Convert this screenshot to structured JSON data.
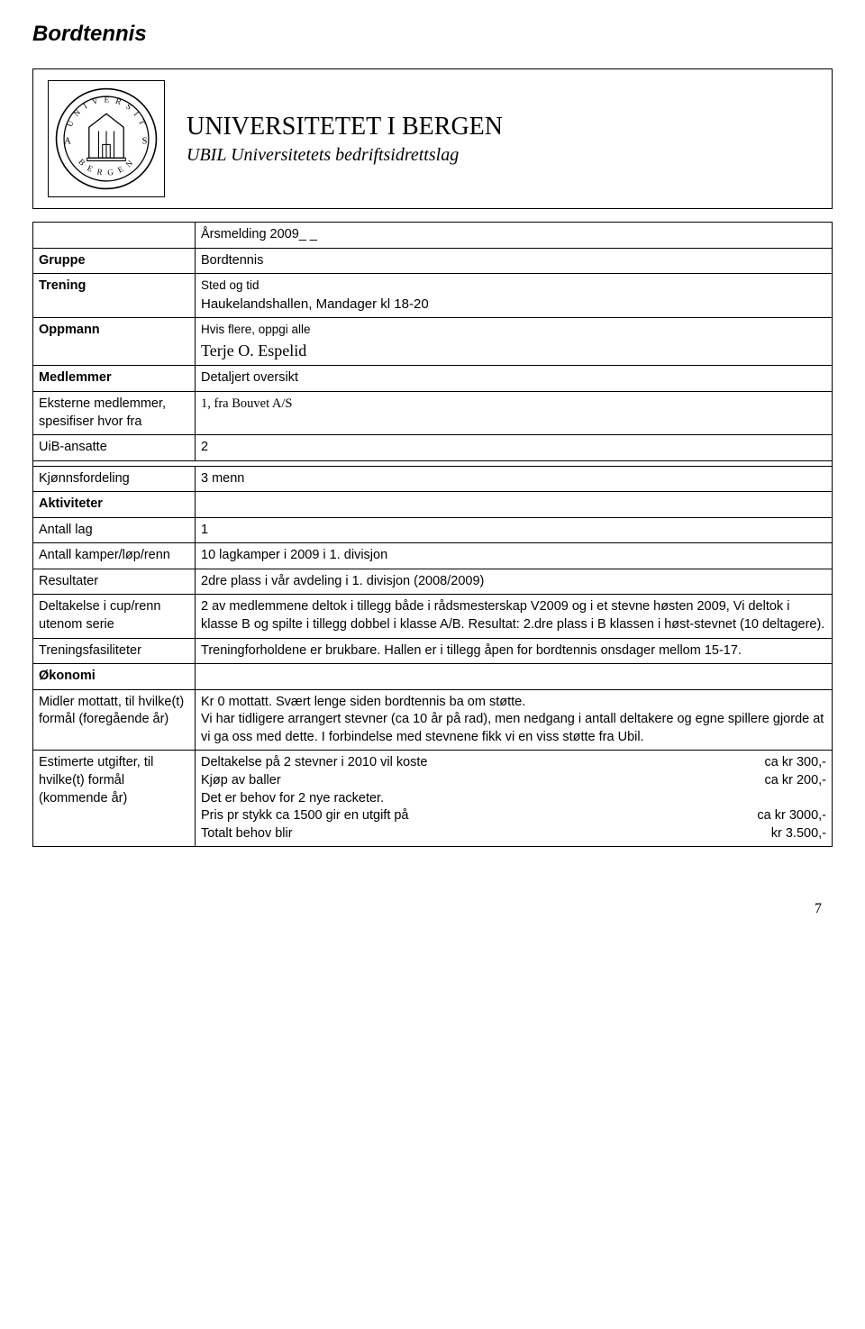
{
  "page_title": "Bordtennis",
  "header": {
    "university": "UNIVERSITETET I BERGEN",
    "subtitle": "UBIL Universitetets bedriftsidrettslag"
  },
  "table_title": "Årsmelding 2009_ _",
  "rows": {
    "gruppe": {
      "label": "Gruppe",
      "value": "Bordtennis"
    },
    "trening": {
      "label": "Trening",
      "sub": "Sted og tid",
      "value": "Haukelandshallen, Mandager kl 18-20"
    },
    "oppmann": {
      "label": "Oppmann",
      "sub": "Hvis flere, oppgi alle",
      "value": "Terje O. Espelid"
    },
    "medlemmer": {
      "label": "Medlemmer",
      "sub": "Detaljert oversikt"
    },
    "eksterne": {
      "label": "Eksterne medlemmer, spesifiser hvor fra",
      "value": "1, fra Bouvet A/S"
    },
    "uib": {
      "label": "UiB-ansatte",
      "value": "2"
    },
    "kjonn": {
      "label": "Kjønnsfordeling",
      "value": "3 menn"
    },
    "aktiviteter": {
      "label": "Aktiviteter"
    },
    "antall_lag": {
      "label": "Antall lag",
      "value": "1"
    },
    "antall_kamper": {
      "label": "Antall kamper/løp/renn",
      "value": "10 lagkamper i 2009 i 1. divisjon"
    },
    "resultater": {
      "label": "Resultater",
      "value": "2dre plass i vår avdeling i 1. divisjon (2008/2009)"
    },
    "deltakelse": {
      "label": "Deltakelse i cup/renn utenom serie",
      "value": "2 av medlemmene deltok i tillegg både i rådsmesterskap  V2009 og i et stevne høsten 2009, Vi deltok i klasse B og spilte i tillegg dobbel i klasse A/B. Resultat: 2.dre plass i B klassen i høst-stevnet (10 deltagere)."
    },
    "trenings": {
      "label": "Treningsfasiliteter",
      "value": "Treningforholdene er brukbare. Hallen er i tillegg åpen for bordtennis onsdager mellom 15-17."
    },
    "okonomi": {
      "label": "Økonomi"
    },
    "midler": {
      "label": "Midler mottatt, til hvilke(t) formål (foregående år)",
      "value": "Kr 0 mottatt. Svært lenge siden bordtennis ba om støtte.\nVi har tidligere arrangert stevner (ca 10 år på rad), men nedgang i antall deltakere og egne spillere gjorde at vi ga oss med dette. I forbindelse med stevnene fikk vi en viss støtte fra Ubil."
    },
    "estimerte": {
      "label": "Estimerte utgifter, til hvilke(t) formål (kommende år)",
      "lines": [
        {
          "l": "Deltakelse på 2 stevner  i 2010 vil koste",
          "r": "ca kr 300,-"
        },
        {
          "l": "Kjøp av baller",
          "r": "ca kr 200,-"
        },
        {
          "l": "Det er behov for 2 nye racketer.",
          "r": ""
        },
        {
          "l": " Pris pr stykk ca 1500 gir en utgift på",
          "r": "ca kr 3000,-"
        },
        {
          "l": "Totalt behov blir",
          "r": "kr 3.500,-"
        }
      ]
    }
  },
  "page_number": "7"
}
